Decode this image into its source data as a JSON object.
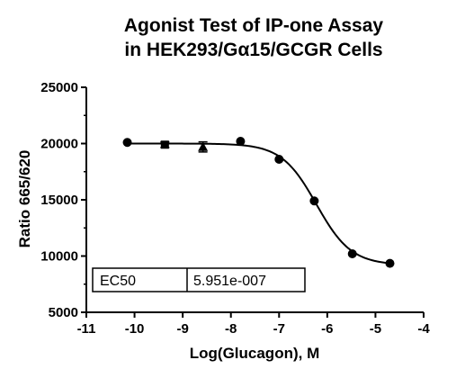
{
  "chart_data": {
    "type": "scatter",
    "title_line1": "Agonist Test of IP-one Assay",
    "title_line2": "in HEK293/Gα15/GCGR Cells",
    "xlabel": "Log(Glucagon), M",
    "ylabel": "Ratio 665/620",
    "xlim": [
      -11,
      -4
    ],
    "ylim": [
      5000,
      25000
    ],
    "x_ticks": [
      "-11",
      "-10",
      "-9",
      "-8",
      "-7",
      "-6",
      "-5",
      "-4"
    ],
    "y_ticks": [
      "5000",
      "10000",
      "15000",
      "20000",
      "25000"
    ],
    "points": [
      {
        "x": -10.15,
        "y": 20100,
        "marker": "circle"
      },
      {
        "x": -9.37,
        "y": 19900,
        "err": 250,
        "marker": "square"
      },
      {
        "x": -8.58,
        "y": 19700,
        "err": 450,
        "marker": "triangle"
      },
      {
        "x": -7.8,
        "y": 20200,
        "marker": "circle"
      },
      {
        "x": -7.0,
        "y": 18600,
        "marker": "circle"
      },
      {
        "x": -6.27,
        "y": 14900,
        "marker": "circle"
      },
      {
        "x": -5.48,
        "y": 10200,
        "marker": "circle"
      },
      {
        "x": -4.7,
        "y": 9350,
        "marker": "circle"
      }
    ],
    "fit": {
      "top": 20000,
      "bottom": 9200,
      "log_ec50": -6.225,
      "hill": 1.2,
      "x_start": -10.15,
      "x_end": -4.7
    },
    "table": {
      "label": "EC50",
      "value": "5.951e-007"
    }
  }
}
